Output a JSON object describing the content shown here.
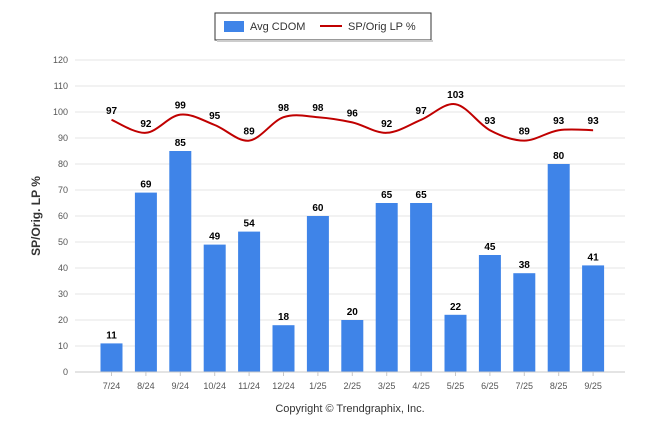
{
  "chart_data": {
    "type": "bar",
    "title": "",
    "xlabel": "",
    "ylabel": "SP/Orig. LP %",
    "ylim": [
      0,
      120
    ],
    "yticks": [
      0,
      10,
      20,
      30,
      40,
      50,
      60,
      70,
      80,
      90,
      100,
      110,
      120
    ],
    "grid": true,
    "legend_position": "top-center",
    "categories": [
      "7/24",
      "8/24",
      "9/24",
      "10/24",
      "11/24",
      "12/24",
      "1/25",
      "2/25",
      "3/25",
      "4/25",
      "5/25",
      "6/25",
      "7/25",
      "8/25",
      "9/25"
    ],
    "series": [
      {
        "name": "Avg CDOM",
        "kind": "bar",
        "color": "#3f84e8",
        "values": [
          11,
          69,
          85,
          49,
          54,
          18,
          60,
          20,
          65,
          65,
          22,
          45,
          38,
          80,
          41
        ]
      },
      {
        "name": "SP/Orig LP %",
        "kind": "line",
        "color": "#c00000",
        "values": [
          97,
          92,
          99,
          95,
          89,
          98,
          98,
          96,
          92,
          97,
          103,
          93,
          89,
          93,
          93
        ]
      }
    ],
    "footer": "Copyright © Trendgraphix, Inc."
  }
}
